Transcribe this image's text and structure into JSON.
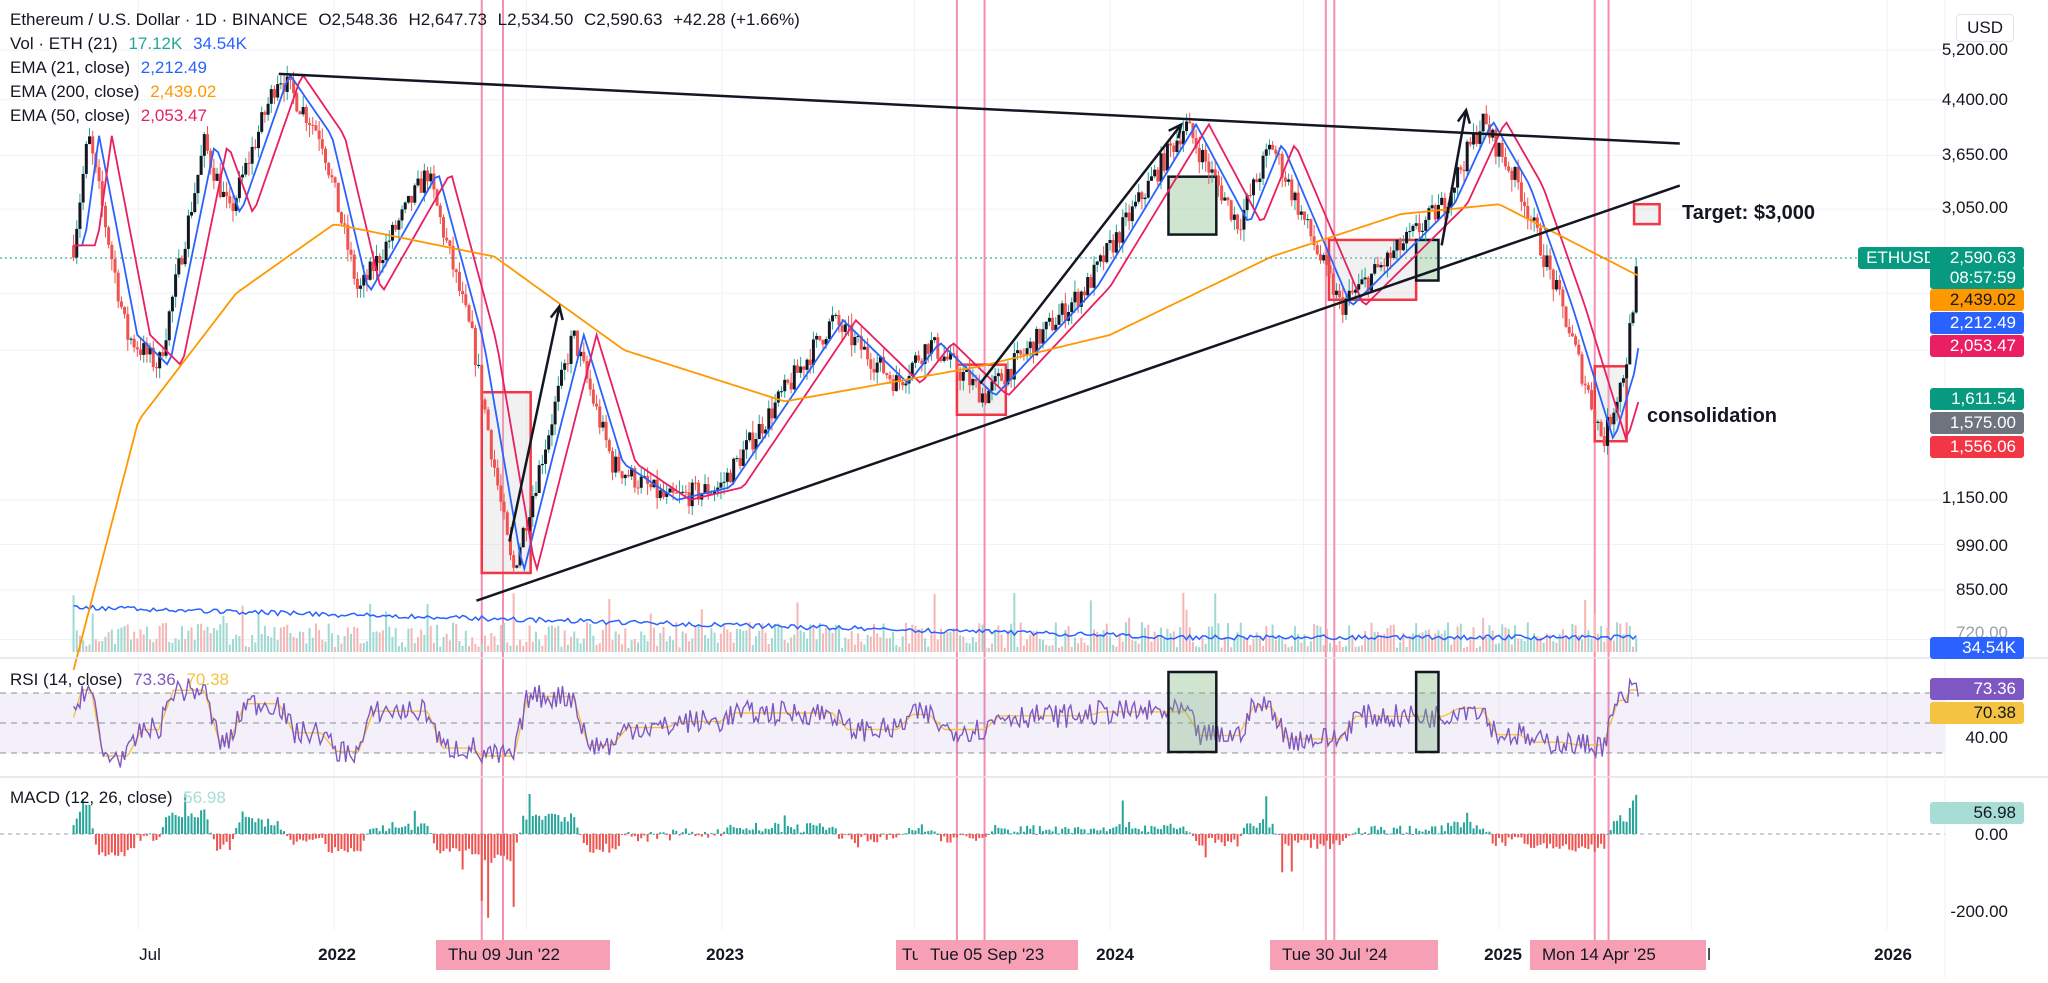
{
  "header": {
    "symbol": "Ethereum / U.S. Dollar · 1D · BINANCE",
    "open": "O2,548.36",
    "high": "H2,647.73",
    "low": "L2,534.50",
    "close": "C2,590.63",
    "change": "+42.28 (+1.66%)"
  },
  "legend": {
    "vol": {
      "label": "Vol · ETH (21)",
      "v1": "17.12K",
      "v2": "34.54K"
    },
    "ema21": {
      "label": "EMA (21, close)",
      "value": "2,212.49"
    },
    "ema200": {
      "label": "EMA (200, close)",
      "value": "2,439.02"
    },
    "ema50": {
      "label": "EMA (50, close)",
      "value": "2,053.47"
    },
    "rsi": {
      "label": "RSI (14, close)",
      "v1": "73.36",
      "v2": "70.38"
    },
    "macd": {
      "label": "MACD (12, 26, close)",
      "v1": "56.98"
    }
  },
  "currency": "USD",
  "price_axis": [
    "5,200.00",
    "4,400.00",
    "3,650.00",
    "3,050.00",
    "1,150.00",
    "990.00",
    "850.00",
    "720.00"
  ],
  "pills": {
    "ticker": "ETHUSD",
    "price": "2,590.63",
    "countdown": "08:57:59",
    "ema200": "2,439.02",
    "ema21": "2,212.49",
    "ema50": "2,053.47",
    "p1": "1,611.54",
    "p2": "1,575.00",
    "p3": "1,556.06",
    "vol": "34.54K",
    "rsi1": "73.36",
    "rsi2": "70.38",
    "rsi_axis": "40.00",
    "macd": "56.98",
    "macd_zero": "0.00",
    "macd_low": "-200.00"
  },
  "time_axis": [
    "Jul",
    "2022",
    "2023",
    "2024",
    "2025",
    "Jul",
    "2026"
  ],
  "date_badges": [
    "Thu 09 Jun '22",
    "Tue 05 Sep '23",
    "Tue 30 Jul '24",
    "Mon 14 Apr '25"
  ],
  "badge_fragments": [
    "Tu"
  ],
  "annotations": {
    "target": "Target: $3,000",
    "consolidation": "consolidation"
  },
  "colors": {
    "ema21": "#2962ff",
    "ema200": "#ff9800",
    "ema50": "#e91e63",
    "rsi": "#7e57c2",
    "rsi_ma": "#f5c342",
    "macd_pos": "#26a69a",
    "macd_neg": "#ef5350",
    "ticker": "#089981"
  },
  "chart_data": {
    "type": "candlestick",
    "title": "Ethereum / U.S. Dollar · 1D · BINANCE",
    "y_scale": "log",
    "y_ticks": [
      5200,
      4400,
      3650,
      3050,
      1150,
      990,
      850,
      720
    ],
    "last_price": 2590.63,
    "close_path": [
      [
        "2021-05-01",
        2700
      ],
      [
        "2021-05-15",
        3900
      ],
      [
        "2021-06-20",
        2000
      ],
      [
        "2021-07-20",
        1800
      ],
      [
        "2021-09-01",
        3800
      ],
      [
        "2021-09-25",
        3000
      ],
      [
        "2021-11-10",
        4800
      ],
      [
        "2021-12-20",
        3900
      ],
      [
        "2022-01-24",
        2300
      ],
      [
        "2022-03-30",
        3450
      ],
      [
        "2022-05-12",
        1950
      ],
      [
        "2022-06-18",
        900
      ],
      [
        "2022-08-14",
        2000
      ],
      [
        "2022-09-20",
        1300
      ],
      [
        "2022-11-10",
        1150
      ],
      [
        "2022-12-30",
        1200
      ],
      [
        "2023-04-15",
        2100
      ],
      [
        "2023-06-15",
        1700
      ],
      [
        "2023-07-15",
        1950
      ],
      [
        "2023-09-05",
        1630
      ],
      [
        "2023-12-10",
        2350
      ],
      [
        "2024-03-12",
        4050
      ],
      [
        "2024-05-01",
        2900
      ],
      [
        "2024-06-01",
        3800
      ],
      [
        "2024-08-05",
        2200
      ],
      [
        "2024-11-10",
        3100
      ],
      [
        "2024-12-16",
        4100
      ],
      [
        "2025-01-20",
        3300
      ],
      [
        "2025-03-01",
        2200
      ],
      [
        "2025-04-09",
        1400
      ],
      [
        "2025-04-30",
        1800
      ],
      [
        "2025-05-12",
        2590
      ]
    ],
    "ema200_path": [
      [
        "2021-05-01",
        650
      ],
      [
        "2021-07-01",
        1500
      ],
      [
        "2021-10-01",
        2300
      ],
      [
        "2022-01-01",
        2900
      ],
      [
        "2022-06-01",
        2600
      ],
      [
        "2022-10-01",
        1900
      ],
      [
        "2023-03-01",
        1600
      ],
      [
        "2023-09-01",
        1800
      ],
      [
        "2024-01-01",
        2000
      ],
      [
        "2024-06-01",
        2600
      ],
      [
        "2024-10-01",
        3000
      ],
      [
        "2025-01-01",
        3100
      ],
      [
        "2025-05-12",
        2439.02
      ]
    ],
    "zones": [
      {
        "label": "box",
        "from": "2022-05-20",
        "to": "2022-07-05",
        "low": 900,
        "high": 1650
      },
      {
        "label": "box",
        "from": "2023-08-10",
        "to": "2023-09-25",
        "low": 1530,
        "high": 1810
      },
      {
        "label": "box",
        "from": "2024-02-25",
        "to": "2024-04-10",
        "low": 2800,
        "high": 3400
      },
      {
        "label": "box",
        "from": "2024-07-25",
        "to": "2024-10-15",
        "low": 2250,
        "high": 2750
      },
      {
        "label": "box",
        "from": "2024-10-15",
        "to": "2024-11-05",
        "low": 2400,
        "high": 2750
      },
      {
        "label": "consolidation",
        "from": "2025-04-01",
        "to": "2025-05-01",
        "low": 1400,
        "high": 1800
      },
      {
        "label": "Target: $3,000",
        "from": "2025-05-08",
        "to": "2025-06-01",
        "low": 2900,
        "high": 3100
      }
    ],
    "trendlines": [
      {
        "from": [
          "2021-11-10",
          4800
        ],
        "to": [
          "2025-06-20",
          3800
        ]
      },
      {
        "from": [
          "2022-05-15",
          820
        ],
        "to": [
          "2025-06-20",
          3300
        ]
      }
    ],
    "rsi": {
      "last": 73.36,
      "ma": 70.38,
      "levels": [
        30,
        50,
        70
      ]
    },
    "macd": {
      "last": 56.98,
      "ticks": [
        0,
        -200
      ]
    },
    "volume": {
      "last": "34.54K",
      "ma": "17.12K"
    }
  }
}
